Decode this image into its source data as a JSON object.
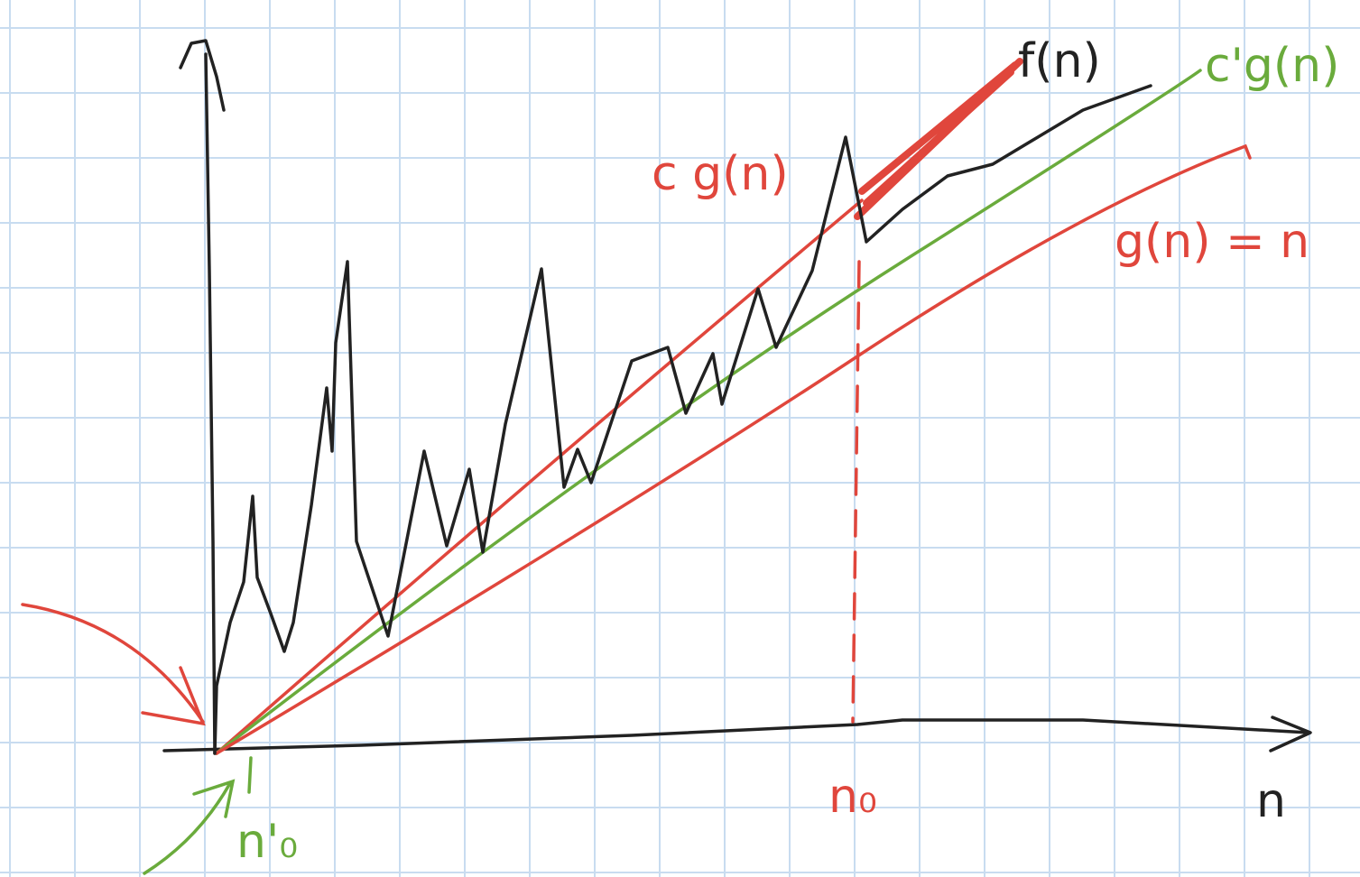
{
  "labels": {
    "f": "f(n)",
    "c_prime_g": "c'g(n)",
    "c_g": "c g(n)",
    "g": "g(n) = n",
    "n0": "n₀",
    "n0_prime": "n'₀",
    "n_axis": "n"
  }
}
